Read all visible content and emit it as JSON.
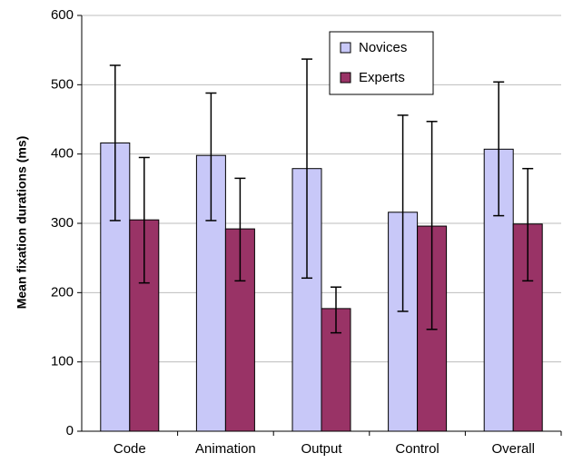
{
  "chart_data": {
    "type": "bar",
    "title": "",
    "xlabel": "",
    "ylabel": "Mean fixation durations (ms)",
    "categories": [
      "Code",
      "Animation",
      "Output",
      "Control",
      "Overall"
    ],
    "ylim": [
      0,
      600
    ],
    "yticks": [
      0,
      100,
      200,
      300,
      400,
      500,
      600
    ],
    "grid": true,
    "legend_position": "top-center",
    "series": [
      {
        "name": "Novices",
        "color": "#c8c8f8",
        "values": [
          416,
          398,
          379,
          316,
          407
        ],
        "err_low": [
          304,
          304,
          221,
          173,
          311
        ],
        "err_high": [
          528,
          488,
          537,
          456,
          504
        ]
      },
      {
        "name": "Experts",
        "color": "#993366",
        "values": [
          305,
          292,
          177,
          296,
          299
        ],
        "err_low": [
          214,
          217,
          142,
          147,
          217
        ],
        "err_high": [
          395,
          365,
          208,
          447,
          379
        ]
      }
    ]
  }
}
